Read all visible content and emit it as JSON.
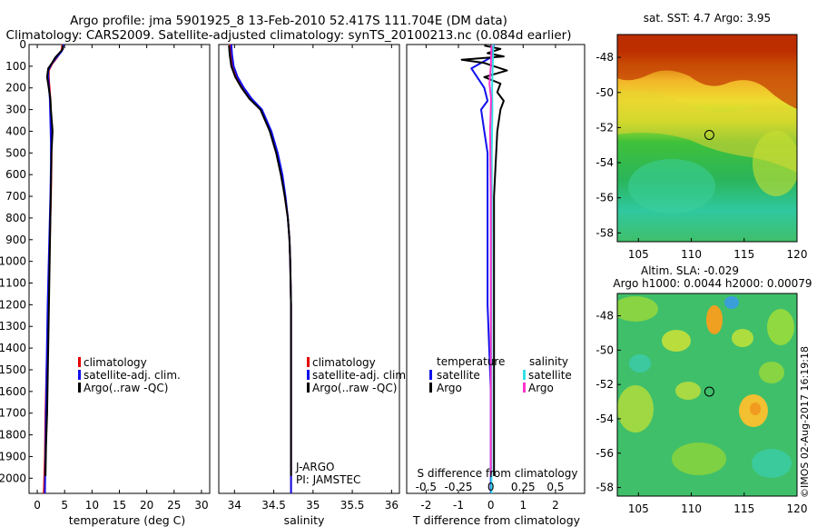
{
  "header": {
    "line1": "Argo profile: jma 5901925_8 13-Feb-2010 52.417S 111.704E (DM data)",
    "line2": "Climatology: CARS2009. Satellite-adjusted climatology: synTS_20100213.nc (0.084d earlier)"
  },
  "colors": {
    "climatology": "#e60000",
    "satellite": "#1010ee",
    "argo": "#000000",
    "satellite_salinity": "#33e0e6",
    "argo_salinity": "#ff33cc"
  },
  "chart_data": [
    {
      "id": "temperature",
      "type": "line",
      "xlabel": "temperature (deg C)",
      "ylabel": "",
      "xlim": [
        -1.5,
        31.5
      ],
      "ylim": [
        2070,
        0
      ],
      "xticks": [
        0,
        5,
        10,
        15,
        20,
        25,
        30
      ],
      "yticks": [
        0,
        100,
        200,
        300,
        400,
        500,
        600,
        700,
        800,
        900,
        1000,
        1100,
        1200,
        1300,
        1400,
        1500,
        1600,
        1700,
        1800,
        1900,
        2000
      ],
      "legend": [
        "climatology",
        "satellite-adj. clim.",
        "Argo(..raw -QC)"
      ],
      "series": [
        {
          "name": "climatology",
          "color": "#e60000",
          "x": [
            4.6,
            4.4,
            3.6,
            2.7,
            2.1,
            2.1,
            2.4,
            2.5,
            2.6,
            2.6,
            2.5,
            2.4,
            2.3,
            2.2,
            2.1,
            2.0,
            1.9,
            1.7,
            1.5,
            1.4,
            1.2
          ],
          "y": [
            0,
            30,
            60,
            90,
            120,
            150,
            250,
            350,
            450,
            550,
            700,
            800,
            900,
            1000,
            1100,
            1200,
            1350,
            1500,
            1700,
            1900,
            2070
          ]
        },
        {
          "name": "satellite-adj. clim.",
          "color": "#1010ee",
          "x": [
            4.8,
            4.5,
            3.5,
            2.6,
            2.0,
            2.0,
            2.3,
            2.4,
            2.5,
            2.5,
            2.4,
            2.3,
            2.2,
            2.1,
            2.0,
            1.9,
            1.8,
            1.7,
            1.6,
            1.5,
            1.4
          ],
          "y": [
            0,
            30,
            60,
            90,
            120,
            150,
            250,
            350,
            450,
            550,
            700,
            800,
            900,
            1000,
            1100,
            1200,
            1350,
            1500,
            1700,
            1900,
            2070
          ]
        },
        {
          "name": "Argo(..raw -QC)",
          "color": "#000000",
          "x": [
            4.6,
            4.7,
            4.0,
            3.3,
            2.7,
            2.0,
            1.8,
            2.1,
            2.4,
            2.5,
            2.8,
            2.6,
            2.5,
            2.4,
            2.3,
            2.2,
            2.1,
            2.0,
            1.9,
            1.8,
            1.6,
            1.5
          ],
          "y": [
            5,
            20,
            40,
            60,
            85,
            110,
            150,
            200,
            250,
            300,
            400,
            500,
            650,
            800,
            950,
            1100,
            1250,
            1400,
            1550,
            1700,
            1850,
            1990
          ]
        }
      ]
    },
    {
      "id": "salinity",
      "type": "line",
      "xlabel": "salinity",
      "ylabel": "",
      "xlim": [
        33.8,
        36.1
      ],
      "ylim": [
        2070,
        0
      ],
      "xticks": [
        34,
        34.5,
        35,
        35.5,
        36
      ],
      "xticklabels": [
        "34",
        "34.5",
        "35",
        "35.5",
        "36"
      ],
      "legend": [
        "climatology",
        "satellite-adj. clim.",
        "Argo(..raw -QC)"
      ],
      "annotation": [
        "J-ARGO",
        "PI: JAMSTEC"
      ],
      "series": [
        {
          "name": "climatology",
          "color": "#e60000",
          "x": [
            33.94,
            33.95,
            33.97,
            34.02,
            34.1,
            34.2,
            34.34,
            34.46,
            34.54,
            34.6,
            34.64,
            34.68,
            34.7,
            34.71,
            34.72,
            34.72,
            34.72,
            34.72
          ],
          "y": [
            0,
            50,
            100,
            150,
            200,
            250,
            300,
            400,
            500,
            600,
            700,
            800,
            900,
            1000,
            1200,
            1500,
            1800,
            2070
          ]
        },
        {
          "name": "satellite-adj. clim.",
          "color": "#1010ee",
          "x": [
            33.96,
            33.97,
            33.99,
            34.04,
            34.12,
            34.22,
            34.35,
            34.47,
            34.55,
            34.61,
            34.65,
            34.68,
            34.7,
            34.71,
            34.72,
            34.72,
            34.72,
            34.72
          ],
          "y": [
            0,
            50,
            100,
            150,
            200,
            250,
            300,
            400,
            500,
            600,
            700,
            800,
            900,
            1000,
            1200,
            1500,
            1800,
            2070
          ]
        },
        {
          "name": "Argo(..raw -QC)",
          "color": "#000000",
          "x": [
            33.93,
            33.94,
            33.96,
            34.01,
            34.09,
            34.19,
            34.33,
            34.45,
            34.53,
            34.59,
            34.64,
            34.68,
            34.7,
            34.71,
            34.72,
            34.72,
            34.72
          ],
          "y": [
            5,
            50,
            100,
            150,
            200,
            250,
            300,
            400,
            500,
            600,
            700,
            800,
            900,
            1000,
            1200,
            1500,
            1990
          ]
        }
      ]
    },
    {
      "id": "difference",
      "type": "line",
      "xlabel": "T difference from climatology",
      "top_axis_label": "S difference from climatology",
      "xlim": [
        -2.6,
        2.9
      ],
      "ylim": [
        2070,
        0
      ],
      "xticks": [
        -2,
        -1,
        0,
        1,
        2
      ],
      "xticklabels": [
        "-2",
        "-1",
        "0",
        "1",
        "2"
      ],
      "top_ticklabels": [
        "-0.5",
        "-0.25",
        "0",
        "0.25",
        "0.5"
      ],
      "legend_titles": [
        "temperature",
        "salinity"
      ],
      "legend": [
        "satellite",
        "Argo",
        "satellite",
        "Argo"
      ],
      "series": [
        {
          "name": "T satellite",
          "color": "#1010ee",
          "x": [
            0.1,
            0.0,
            -0.6,
            -0.2,
            -0.1,
            -0.3,
            -0.2,
            -0.1,
            -0.1,
            -0.1,
            -0.1,
            0.0,
            0.0
          ],
          "y": [
            0,
            60,
            110,
            200,
            260,
            300,
            400,
            500,
            700,
            900,
            1200,
            1600,
            2070
          ]
        },
        {
          "name": "T Argo",
          "color": "#000000",
          "x": [
            -0.2,
            0.3,
            -0.1,
            0.4,
            -0.9,
            -0.2,
            0.1,
            0.5,
            -0.2,
            0.3,
            0.2,
            0.4,
            0.3,
            0.2,
            0.1,
            0.1,
            0.1,
            0.1
          ],
          "y": [
            5,
            20,
            40,
            55,
            70,
            85,
            100,
            120,
            150,
            180,
            220,
            260,
            300,
            400,
            700,
            1000,
            1500,
            1990
          ]
        },
        {
          "name": "S satellite",
          "color": "#33e0e6",
          "x": [
            0.08,
            0.06,
            0.04,
            0.05,
            0.03,
            0.03,
            0.02,
            0.02,
            0.02,
            0.02
          ],
          "y": [
            0,
            100,
            200,
            300,
            500,
            800,
            1100,
            1400,
            1700,
            2070
          ]
        },
        {
          "name": "S Argo",
          "color": "#ff33cc",
          "x": [
            0.02,
            0.0,
            -0.04,
            0.01,
            -0.02,
            0.0,
            0.0,
            0.0,
            0.0
          ],
          "y": [
            5,
            100,
            180,
            250,
            400,
            700,
            1000,
            1500,
            1990
          ]
        }
      ]
    },
    {
      "id": "sst_map",
      "type": "heatmap",
      "title": "sat. SST: 4.7 Argo: 3.95",
      "xlim": [
        103,
        120
      ],
      "ylim": [
        -58.5,
        -46.7
      ],
      "xticks": [
        105,
        110,
        115,
        120
      ],
      "yticks": [
        -48,
        -50,
        -52,
        -54,
        -56,
        -58
      ],
      "yticklabels": [
        "-48",
        "-50",
        "-52",
        "-54",
        "-56",
        "-58"
      ],
      "marker": {
        "lon": 111.704,
        "lat": -52.417
      }
    },
    {
      "id": "sla_map",
      "type": "heatmap",
      "title": "Altim. SLA: -0.029",
      "subtitle": "Argo h1000: 0.0044 h2000: 0.00079",
      "xlim": [
        103,
        120
      ],
      "ylim": [
        -58.5,
        -46.7
      ],
      "xticks": [
        105,
        110,
        115,
        120
      ],
      "yticks": [
        -48,
        -50,
        -52,
        -54,
        -56,
        -58
      ],
      "yticklabels": [
        "-48",
        "-50",
        "-52",
        "-54",
        "-56",
        "-58"
      ],
      "marker": {
        "lon": 111.704,
        "lat": -52.417
      }
    }
  ],
  "watermark": "©IMOS 02-Aug-2017 16:19:18"
}
